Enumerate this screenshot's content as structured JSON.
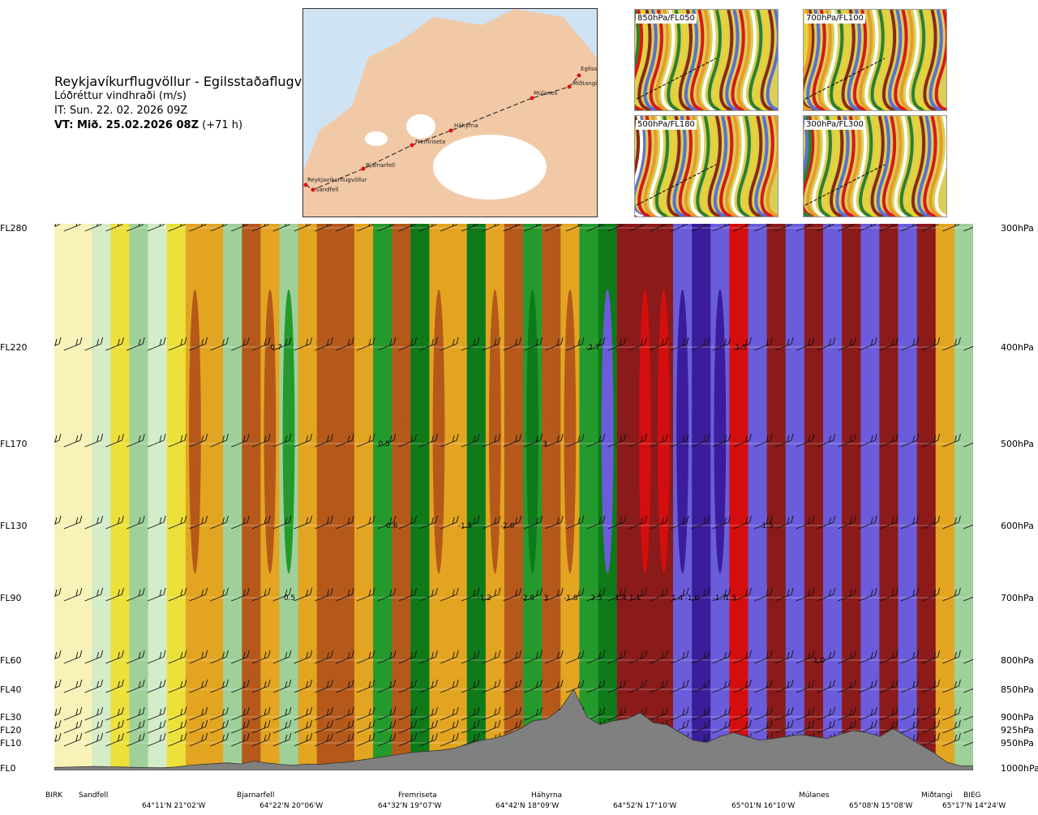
{
  "header": {
    "route": "Reykjavíkurflugvöllur - Egilsstaðaflugvöllur",
    "variable": "Lóðréttur vindhraði (m/s)",
    "issue_time": "IT: Sun. 22. 02. 2026 09Z",
    "valid_bold": "VT: Mið. 25.02.2026 08Z",
    "valid_suffix": " (+71 h)"
  },
  "map": {
    "labels": [
      "Reykjavíkurflugvöllur",
      "Sandfell",
      "Bjarnarfell",
      "Fremriseta",
      "Háhyrna",
      "Múlanes",
      "Miðtangi",
      "Egilsst"
    ],
    "colors": {
      "sea": "#cfe3f3",
      "land": "#f2c9a6",
      "glacier": "#ffffff",
      "route": "#333333",
      "point": "#e01010"
    }
  },
  "thumbnails": [
    {
      "label": "850hPa/FL050"
    },
    {
      "label": "700hPa/FL100"
    },
    {
      "label": "500hPa/FL180"
    },
    {
      "label": "300hPa/FL300"
    }
  ],
  "chart_data": {
    "type": "heatmap",
    "title": "Lóðréttur vindhraði (m/s)",
    "levels": [
      {
        "fl": "FL280",
        "hpa": "300hPa"
      },
      {
        "fl": "FL220",
        "hpa": "400hPa"
      },
      {
        "fl": "FL170",
        "hpa": "500hPa"
      },
      {
        "fl": "FL130",
        "hpa": "600hPa"
      },
      {
        "fl": "FL90",
        "hpa": "700hPa"
      },
      {
        "fl": "FL60",
        "hpa": "800hPa"
      },
      {
        "fl": "FL40",
        "hpa": "850hPa"
      },
      {
        "fl": "FL30",
        "hpa": "900hPa"
      },
      {
        "fl": "FL20",
        "hpa": "925hPa"
      },
      {
        "fl": "FL10",
        "hpa": "950hPa"
      },
      {
        "fl": "FL0",
        "hpa": "1000hPa"
      }
    ],
    "waypoints": [
      "BIRK",
      "Sandfell",
      "Bjarnarfell",
      "Fremriseta",
      "Háhyrna",
      "Múlanes",
      "Miðtangi",
      "BIEG"
    ],
    "coordinates": [
      "64°11'N 21°02'W",
      "64°22'N 20°06'W",
      "64°32'N 19°07'W",
      "64°42'N 18°09'W",
      "64°52'N 17°10'W",
      "65°01'N 16°10'W",
      "65°08'N 15°08'W",
      "65°17'N 14°24'W"
    ],
    "colors": {
      "strong_down": "#8b1a1a",
      "down": "#b5591b",
      "weak_down": "#e3a521",
      "very_weak_down": "#ede03a",
      "neutral": "#f8f1b8",
      "very_weak_up": "#d4ecc8",
      "weak_up": "#9fd09a",
      "up": "#259a2c",
      "strong_up": "#0e7a1a",
      "extreme_up_a": "#6b5cdc",
      "extreme_up_b": "#3a1d9a",
      "extreme_down": "#d40e0e",
      "terrain": "#808080"
    },
    "columns": [
      0.0,
      0.0,
      0.1,
      -0.1,
      0.2,
      0.1,
      -0.2,
      -0.4,
      -0.3,
      0.2,
      -0.5,
      -0.4,
      0.3,
      -0.3,
      -0.5,
      -0.7,
      -0.3,
      0.4,
      -0.5,
      0.6,
      -0.4,
      -0.3,
      0.7,
      -0.4,
      -0.5,
      0.5,
      -0.6,
      -0.4,
      0.4,
      0.8,
      -1.5,
      -2.0,
      -1.9,
      2.5,
      3.0,
      2.5,
      -2.7,
      1.8,
      -1.5,
      1.4,
      -1.6,
      1.6,
      -1.6,
      1.9,
      -1.4,
      1.5,
      -1.4,
      -0.3,
      0.2
    ],
    "data_labels": [
      {
        "text": "-0.7",
        "x": 24.0,
        "level": "FL220"
      },
      {
        "text": "-2.7",
        "x": 58.6,
        "level": "FL220"
      },
      {
        "text": "-1.5",
        "x": 74.6,
        "level": "FL220"
      },
      {
        "text": "0.5",
        "x": 35.9,
        "level": "FL170"
      },
      {
        "text": "3",
        "x": 53.4,
        "level": "FL170"
      },
      {
        "text": "-0.6",
        "x": 36.6,
        "level": "FL130"
      },
      {
        "text": "-1.5",
        "x": 44.7,
        "level": "FL130"
      },
      {
        "text": "-2.0",
        "x": 49.3,
        "level": "FL130"
      },
      {
        "text": "-1.5",
        "x": 77.5,
        "level": "FL130"
      },
      {
        "text": "0.5",
        "x": 25.6,
        "level": "FL90"
      },
      {
        "text": "-1.2",
        "x": 46.8,
        "level": "FL90"
      },
      {
        "text": "-2.0",
        "x": 51.5,
        "level": "FL90"
      },
      {
        "text": "3",
        "x": 53.5,
        "level": "FL90"
      },
      {
        "text": "-1.8",
        "x": 56.2,
        "level": "FL90"
      },
      {
        "text": "2.5",
        "x": 59.0,
        "level": "FL90"
      },
      {
        "text": "-1.4",
        "x": 61.5,
        "level": "FL90"
      },
      {
        "text": "1.1",
        "x": 63.2,
        "level": "FL90"
      },
      {
        "text": "1.4",
        "x": 67.8,
        "level": "FL90"
      },
      {
        "text": "-1.6",
        "x": 69.4,
        "level": "FL90"
      },
      {
        "text": "-1.7",
        "x": 72.4,
        "level": "FL90"
      },
      {
        "text": "1.5",
        "x": 73.6,
        "level": "FL90"
      },
      {
        "text": "-1.0",
        "x": 83.1,
        "level": "FL60"
      }
    ],
    "terrain_ft": [
      30,
      40,
      60,
      80,
      60,
      50,
      30,
      20,
      10,
      40,
      120,
      180,
      220,
      260,
      200,
      350,
      250,
      180,
      140,
      200,
      180,
      250,
      300,
      400,
      500,
      600,
      700,
      800,
      850,
      900,
      1000,
      1200,
      1400,
      1500,
      1700,
      2000,
      2400,
      2500,
      3000,
      4000,
      2600,
      2200,
      2400,
      2500,
      2800,
      2300,
      2200,
      1800,
      1400,
      1300,
      1600,
      1800,
      1600,
      1400,
      1500,
      1600,
      1700,
      1600,
      1500,
      1700,
      1900,
      1800,
      1600,
      2000,
      1600,
      1200,
      800,
      300,
      120,
      100
    ]
  }
}
